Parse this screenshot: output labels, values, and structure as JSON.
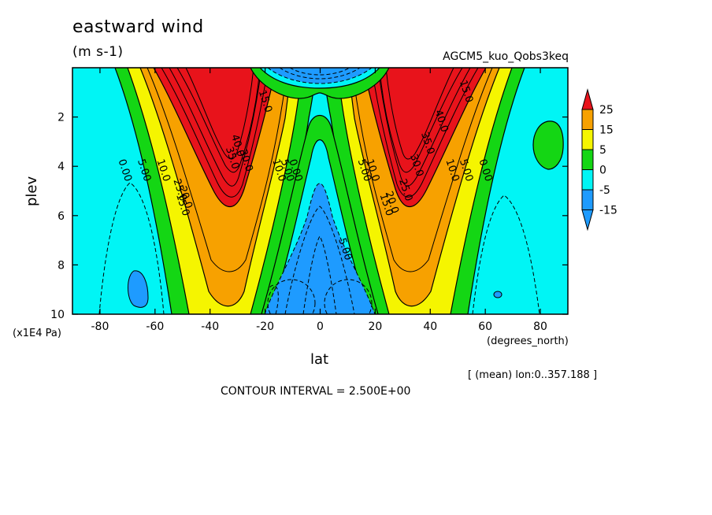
{
  "chart_data": {
    "type": "heatmap",
    "title": "eastward wind",
    "units": "(m s-1)",
    "dataset": "AGCM5_kuo_Qobs3keq",
    "xlabel": "lat",
    "xunit": "(degrees_north)",
    "ylabel": "plev",
    "yunit": "(x1E4 Pa)",
    "footer_mean": "[ (mean) lon:0..357.188 ]",
    "contour_interval": "CONTOUR INTERVAL = 2.500E+00",
    "xlim": [
      -90,
      90
    ],
    "ylim": [
      0,
      10
    ],
    "y_inverted": true,
    "x_ticks": [
      "-80",
      "-60",
      "-40",
      "-20",
      "0",
      "20",
      "40",
      "60",
      "80"
    ],
    "x_tick_values": [
      -80,
      -60,
      -40,
      -20,
      0,
      20,
      40,
      60,
      80
    ],
    "y_ticks": [
      "2",
      "4",
      "6",
      "8",
      "10"
    ],
    "y_tick_values": [
      2,
      4,
      6,
      8,
      10
    ],
    "colorbar": {
      "labels": [
        "25",
        "15",
        "5",
        "0",
        "-5",
        "-15"
      ],
      "colors": [
        "#e8131b",
        "#f7a100",
        "#f5f500",
        "#14d614",
        "#00f5f5",
        "#1e9bff"
      ]
    },
    "contour_labels": [
      {
        "text": "0.00",
        "lat": -72,
        "plev": 4.2
      },
      {
        "text": "5.00",
        "lat": -65,
        "plev": 4.2
      },
      {
        "text": "10.0",
        "lat": -58,
        "plev": 4.2
      },
      {
        "text": "25.0",
        "lat": -52,
        "plev": 5.0
      },
      {
        "text": "20.0",
        "lat": -50,
        "plev": 5.3
      },
      {
        "text": "15.0",
        "lat": -51,
        "plev": 5.6
      },
      {
        "text": "35.0",
        "lat": -33,
        "plev": 3.7
      },
      {
        "text": "40.0",
        "lat": -31,
        "plev": 3.2
      },
      {
        "text": "30.0",
        "lat": -28,
        "plev": 3.8
      },
      {
        "text": "15.0",
        "lat": -21,
        "plev": 1.4
      },
      {
        "text": "10.0",
        "lat": -16,
        "plev": 4.2
      },
      {
        "text": "5.00",
        "lat": -13,
        "plev": 4.2
      },
      {
        "text": "0.00",
        "lat": -10,
        "plev": 4.2
      },
      {
        "text": "5.00",
        "lat": 8,
        "plev": 7.4
      },
      {
        "text": "5.00",
        "lat": 15,
        "plev": 4.2
      },
      {
        "text": "10.0",
        "lat": 18,
        "plev": 4.2
      },
      {
        "text": "15.0",
        "lat": 23,
        "plev": 5.6
      },
      {
        "text": "20.0",
        "lat": 25,
        "plev": 5.5
      },
      {
        "text": "25.0",
        "lat": 30,
        "plev": 5.0
      },
      {
        "text": "30.0",
        "lat": 34,
        "plev": 4.0
      },
      {
        "text": "35.0",
        "lat": 38,
        "plev": 3.1
      },
      {
        "text": "40.0",
        "lat": 43,
        "plev": 2.2
      },
      {
        "text": "15.0",
        "lat": 52,
        "plev": 1.0
      },
      {
        "text": "10.0",
        "lat": 47,
        "plev": 4.2
      },
      {
        "text": "5.00",
        "lat": 52,
        "plev": 4.2
      },
      {
        "text": "0.00",
        "lat": 59,
        "plev": 4.2
      }
    ]
  }
}
